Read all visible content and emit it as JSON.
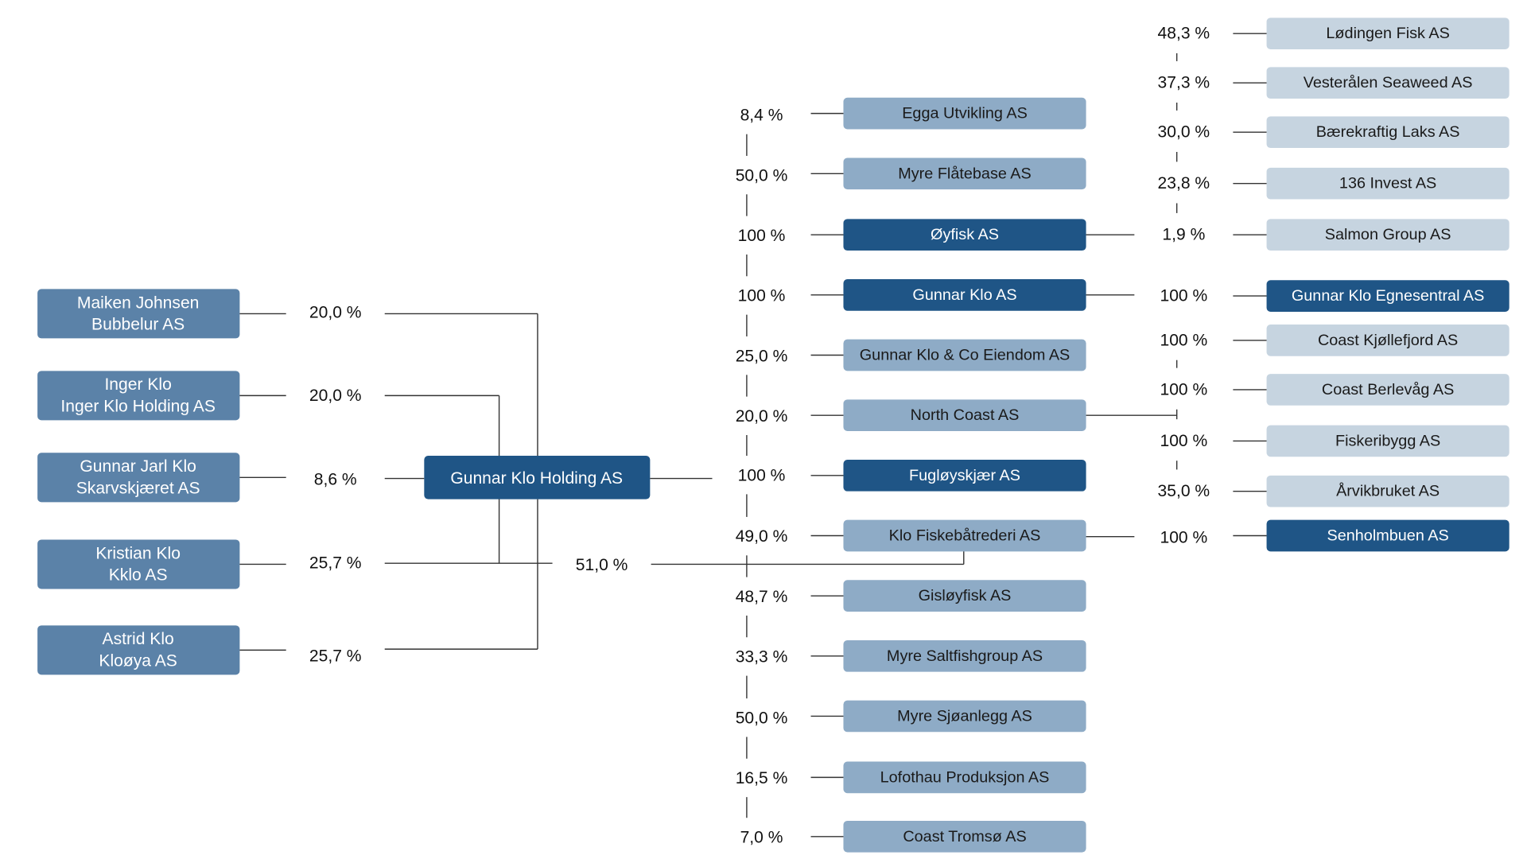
{
  "colors": {
    "owner": "#5b82a8",
    "holding": "#1f5586",
    "full_owned": "#1f5586",
    "mid_partial": "#8eabc6",
    "outer_partial": "#c6d4e0",
    "line": "#333333",
    "label_text": "#111111",
    "dark_text": "#ffffff",
    "light_text": "#1a1a1a"
  },
  "owners": [
    {
      "line1": "Maiken Johnsen",
      "line2": "Bubbelur AS",
      "pct": "20,0 %"
    },
    {
      "line1": "Inger Klo",
      "line2": "Inger Klo Holding AS",
      "pct": "20,0 %"
    },
    {
      "line1": "Gunnar Jarl Klo",
      "line2": "Skarvskjæret AS",
      "pct": "8,6 %"
    },
    {
      "line1": "Kristian Klo",
      "line2": "Kklo AS",
      "pct": "25,7 %"
    },
    {
      "line1": "Astrid Klo",
      "line2": "Kloøya AS",
      "pct": "25,7 %"
    }
  ],
  "holding": {
    "name": "Gunnar Klo Holding AS"
  },
  "cross_ownership": {
    "pct": "51,0 %"
  },
  "subsidiaries": [
    {
      "name": "Egga Utvikling AS",
      "pct": "8,4 %",
      "level": "partial"
    },
    {
      "name": "Myre Flåtebase AS",
      "pct": "50,0 %",
      "level": "partial"
    },
    {
      "name": "Øyfisk AS",
      "pct": "100 %",
      "level": "full"
    },
    {
      "name": "Gunnar Klo AS",
      "pct": "100 %",
      "level": "full"
    },
    {
      "name": "Gunnar Klo & Co Eiendom AS",
      "pct": "25,0 %",
      "level": "partial"
    },
    {
      "name": "North Coast AS",
      "pct": "20,0 %",
      "level": "partial"
    },
    {
      "name": "Fugløyskjær AS",
      "pct": "100 %",
      "level": "full"
    },
    {
      "name": "Klo Fiskebåtrederi AS",
      "pct": "49,0 %",
      "level": "partial"
    },
    {
      "name": "Gisløyfisk AS",
      "pct": "48,7 %",
      "level": "partial"
    },
    {
      "name": "Myre Saltfishgroup AS",
      "pct": "33,3 %",
      "level": "partial"
    },
    {
      "name": "Myre Sjøanlegg AS",
      "pct": "50,0 %",
      "level": "partial"
    },
    {
      "name": "Lofothau Produksjon AS",
      "pct": "16,5 %",
      "level": "partial"
    },
    {
      "name": "Coast Tromsø AS",
      "pct": "7,0 %",
      "level": "partial"
    }
  ],
  "outer": {
    "oyfisk_holdings": [
      {
        "name": "Lødingen Fisk AS",
        "pct": "48,3 %",
        "level": "partial"
      },
      {
        "name": "Vesterålen Seaweed AS",
        "pct": "37,3 %",
        "level": "partial"
      },
      {
        "name": "Bærekraftig Laks AS",
        "pct": "30,0 %",
        "level": "partial"
      },
      {
        "name": "136 Invest AS",
        "pct": "23,8 %",
        "level": "partial"
      },
      {
        "name": "Salmon Group AS",
        "pct": "1,9 %",
        "level": "partial"
      }
    ],
    "gunnar_klo_holdings": [
      {
        "name": "Gunnar Klo Egnesentral AS",
        "pct": "100 %",
        "level": "full"
      }
    ],
    "north_coast_holdings": [
      {
        "name": "Coast Kjøllefjord AS",
        "pct": "100 %",
        "level": "partial"
      },
      {
        "name": "Coast Berlevåg AS",
        "pct": "100 %",
        "level": "partial"
      },
      {
        "name": "Fiskeribygg AS",
        "pct": "100 %",
        "level": "partial"
      },
      {
        "name": "Årvikbruket AS",
        "pct": "35,0 %",
        "level": "partial"
      }
    ],
    "fiskebatrederi_holdings": [
      {
        "name": "Senholmbuen AS",
        "pct": "100 %",
        "level": "full"
      }
    ]
  }
}
